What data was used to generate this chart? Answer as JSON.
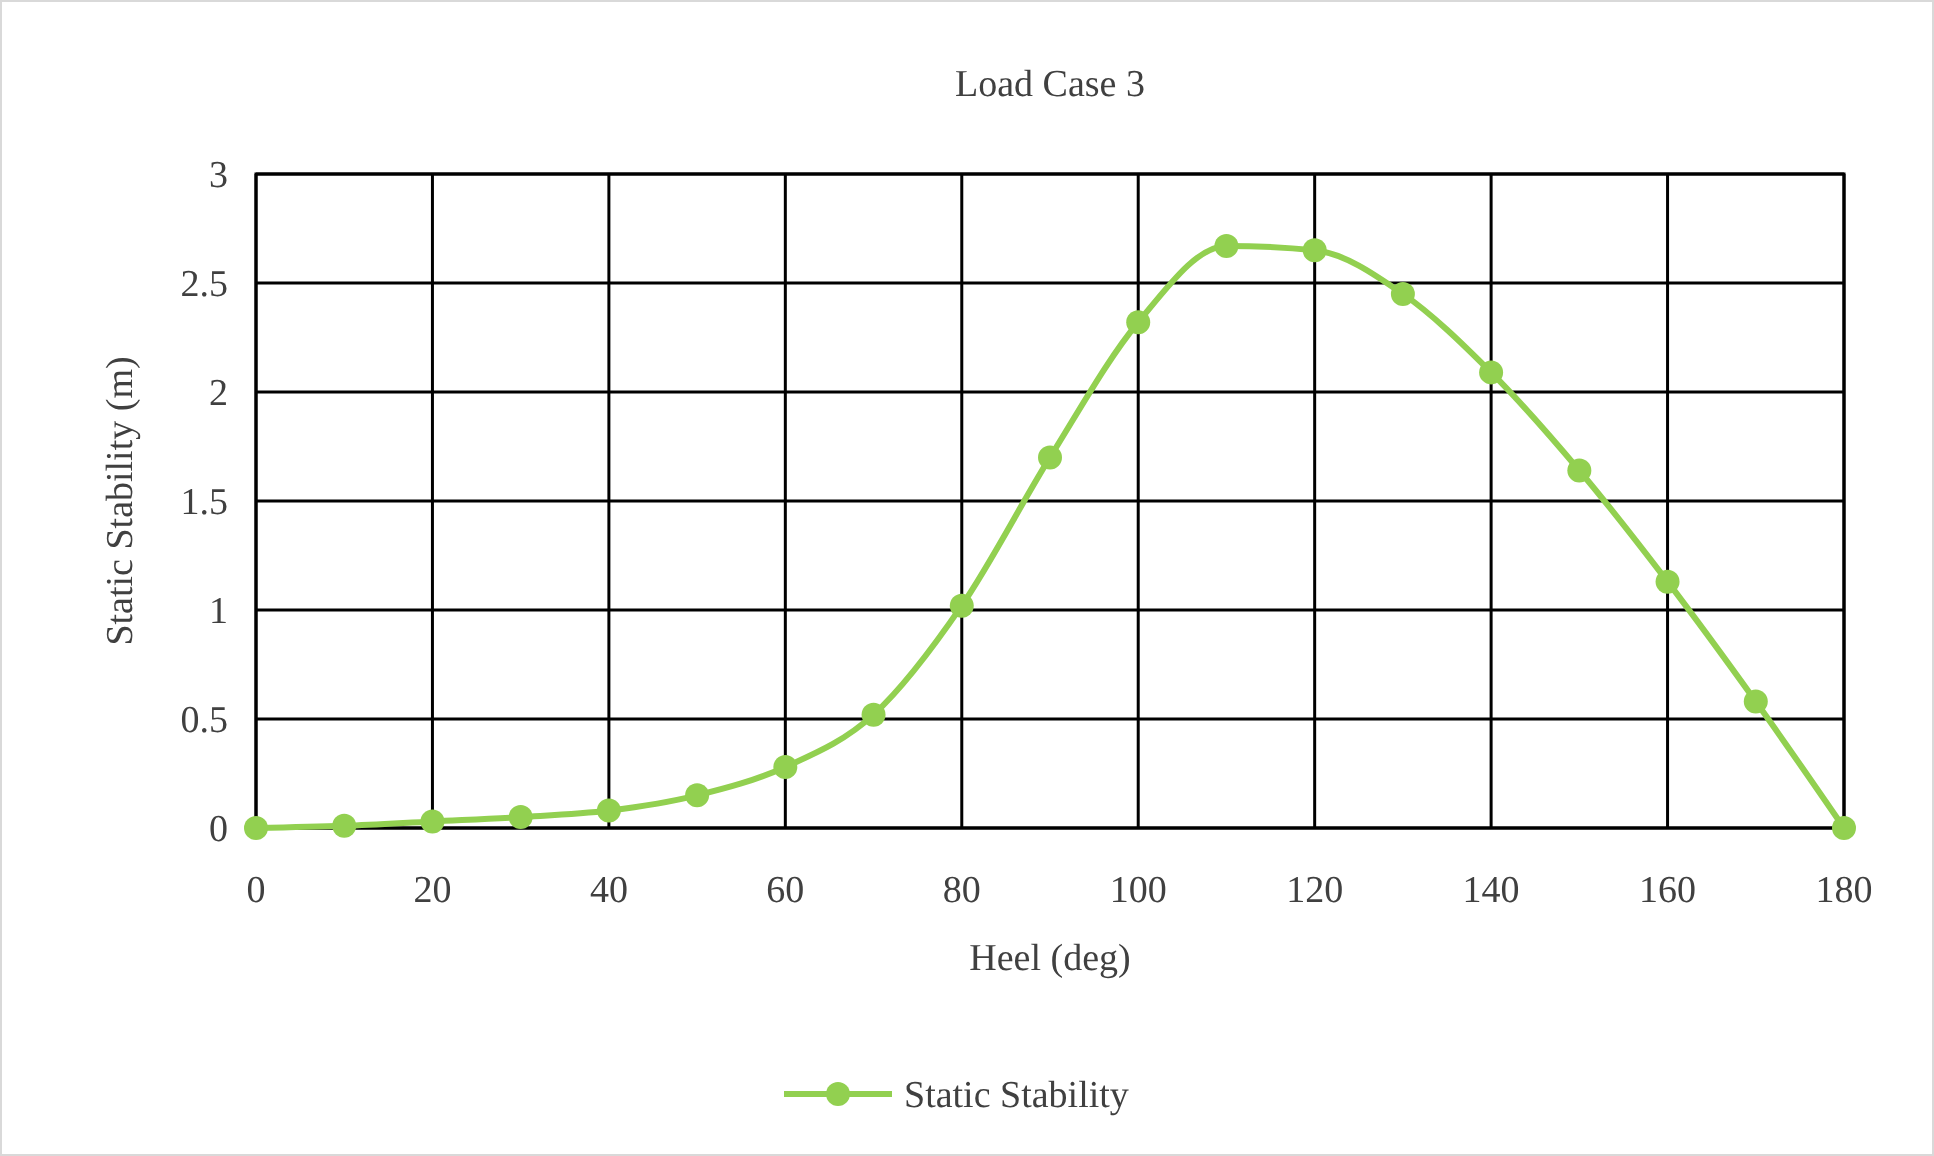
{
  "chart_data": {
    "type": "line",
    "title": "Load Case 3",
    "xlabel": "Heel (deg)",
    "ylabel": "Static Stability (m)",
    "x": [
      0,
      10,
      20,
      30,
      40,
      50,
      60,
      70,
      80,
      90,
      100,
      110,
      120,
      130,
      140,
      150,
      160,
      170,
      180
    ],
    "series": [
      {
        "name": "Static Stability",
        "color": "#92d050",
        "values": [
          0,
          0.01,
          0.03,
          0.05,
          0.08,
          0.15,
          0.28,
          0.52,
          1.02,
          1.7,
          2.32,
          2.67,
          2.65,
          2.45,
          2.09,
          1.64,
          1.13,
          0.58,
          0
        ]
      }
    ],
    "xlim": [
      0,
      180
    ],
    "xticks": [
      0,
      20,
      40,
      60,
      80,
      100,
      120,
      140,
      160,
      180
    ],
    "ylim": [
      0,
      3
    ],
    "yticks": [
      0,
      0.5,
      1,
      1.5,
      2,
      2.5,
      3
    ],
    "grid": true,
    "legend": "bottom",
    "marker": "circle",
    "line_style": "solid"
  }
}
